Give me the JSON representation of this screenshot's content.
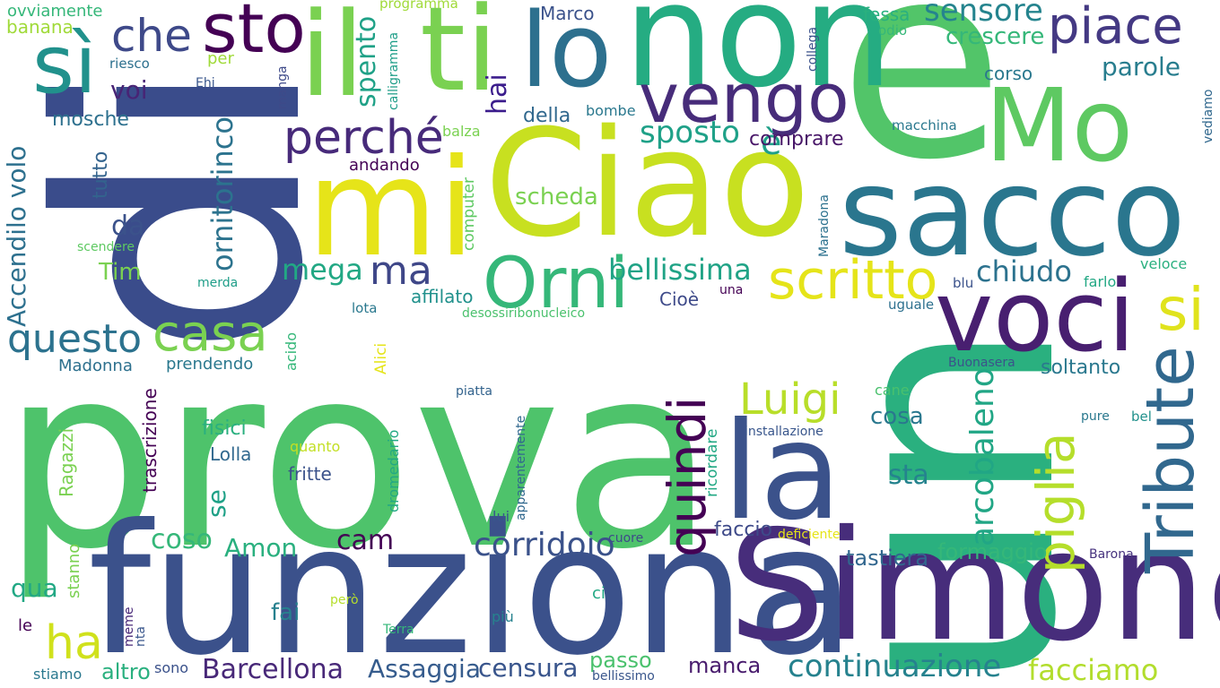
{
  "words": [
    {
      "key": "di",
      "text": "di",
      "color": "#3a4c8b"
    },
    {
      "key": "prova",
      "text": "prova",
      "color": "#4ec36b"
    },
    {
      "key": "e",
      "text": "e",
      "color": "#52c569"
    },
    {
      "key": "un",
      "text": "un",
      "color": "#2ab07f"
    },
    {
      "key": "funziona",
      "text": "funziona",
      "color": "#3b518b"
    },
    {
      "key": "Simone",
      "text": "Simone",
      "color": "#472d7b"
    },
    {
      "key": "Ciao",
      "text": "Ciao",
      "color": "#c8e020"
    },
    {
      "key": "non",
      "text": "non",
      "color": "#25ac82"
    },
    {
      "key": "sacco",
      "text": "sacco",
      "color": "#2a768e"
    },
    {
      "key": "mi",
      "text": "mi",
      "color": "#e6e419"
    },
    {
      "key": "la",
      "text": "la",
      "color": "#3b528b"
    },
    {
      "key": "voci",
      "text": "voci",
      "color": "#481f70"
    },
    {
      "key": "il",
      "text": "il",
      "color": "#7ad151"
    },
    {
      "key": "ti",
      "text": "ti",
      "color": "#7ad151"
    },
    {
      "key": "lo",
      "text": "lo",
      "color": "#2d708e"
    },
    {
      "key": "Mo",
      "text": "Mo",
      "color": "#5ec962"
    },
    {
      "key": "Tribute",
      "text": "Tribute",
      "color": "#31688e"
    },
    {
      "key": "sì",
      "text": "sì",
      "color": "#21918c"
    },
    {
      "key": "sto",
      "text": "sto",
      "color": "#440154"
    },
    {
      "key": "vengo",
      "text": "vengo",
      "color": "#472c7a"
    },
    {
      "key": "Orni",
      "text": "Orni",
      "color": "#35b779"
    },
    {
      "key": "scritto",
      "text": "scritto",
      "color": "#e5e419"
    },
    {
      "key": "piace",
      "text": "piace",
      "color": "#443983"
    },
    {
      "key": "quindi",
      "text": "quindi",
      "color": "#440154"
    },
    {
      "key": "piglia",
      "text": "piglia",
      "color": "#b5de2b"
    },
    {
      "key": "perché",
      "text": "perché",
      "color": "#472a7a"
    },
    {
      "key": "casa",
      "text": "casa",
      "color": "#7ad151"
    },
    {
      "key": "si",
      "text": "si",
      "color": "#e0e31d"
    },
    {
      "key": "questo",
      "text": "questo",
      "color": "#2c728e"
    },
    {
      "key": "ha",
      "text": "ha",
      "color": "#d0e11c"
    },
    {
      "key": "che",
      "text": "che",
      "color": "#3e4989"
    },
    {
      "key": "Luigi",
      "text": "Luigi",
      "color": "#b8de29"
    },
    {
      "key": "arcobaleno",
      "text": "arcobaleno",
      "color": "#21a685"
    },
    {
      "key": "ma",
      "text": "ma",
      "color": "#3f4788"
    },
    {
      "key": "Accendilo volo",
      "text": "Accendilo volo",
      "color": "#2d708e"
    },
    {
      "key": "ornitorinco",
      "text": "ornitorinco",
      "color": "#2c738e"
    },
    {
      "key": "bellissima",
      "text": "bellissima",
      "color": "#20a386"
    },
    {
      "key": "continuazione",
      "text": "continuazione",
      "color": "#26828e"
    },
    {
      "key": "corridoio",
      "text": "corridoio",
      "color": "#3b528b"
    },
    {
      "key": "sposto",
      "text": "sposto",
      "color": "#1fa188"
    },
    {
      "key": "è",
      "text": "è",
      "color": "#1fa088"
    },
    {
      "key": "sensore",
      "text": "sensore",
      "color": "#25848e"
    },
    {
      "key": "spento",
      "text": "spento",
      "color": "#1fa187"
    },
    {
      "key": "mega",
      "text": "mega",
      "color": "#22a884"
    },
    {
      "key": "chiudo",
      "text": "chiudo",
      "color": "#2c728e"
    },
    {
      "key": "parole",
      "text": "parole",
      "color": "#287d8e"
    },
    {
      "key": "hai",
      "text": "hai",
      "color": "#3b1c8c"
    },
    {
      "key": "voi",
      "text": "voi",
      "color": "#482475"
    },
    {
      "key": "Barcellona",
      "text": "Barcellona",
      "color": "#482878"
    },
    {
      "key": "facciamo",
      "text": "facciamo",
      "color": "#b2dd2d"
    },
    {
      "key": "Assaggia",
      "text": "Assaggia",
      "color": "#365c8d"
    },
    {
      "key": "censura",
      "text": "censura",
      "color": "#39558c"
    },
    {
      "key": "cam",
      "text": "cam",
      "color": "#440154"
    },
    {
      "key": "coso",
      "text": "coso",
      "color": "#35b779"
    },
    {
      "key": "Amon",
      "text": "Amon",
      "color": "#2ab07f"
    },
    {
      "key": "crescere",
      "text": "crescere",
      "color": "#35b779"
    },
    {
      "key": "comprare",
      "text": "comprare",
      "color": "#481668"
    },
    {
      "key": "della",
      "text": "della",
      "color": "#31688e"
    },
    {
      "key": "scheda",
      "text": "scheda",
      "color": "#7ad151"
    },
    {
      "key": "sta",
      "text": "sta",
      "color": "#25838e"
    },
    {
      "key": "cosa",
      "text": "cosa",
      "color": "#2a788e"
    },
    {
      "key": "tastiera",
      "text": "tastiera",
      "color": "#31668e"
    },
    {
      "key": "formaggio",
      "text": "formaggio",
      "color": "#35b779"
    },
    {
      "key": "soltanto",
      "text": "soltanto",
      "color": "#2a788e"
    },
    {
      "key": "mosche",
      "text": "mosche",
      "color": "#2d708e"
    },
    {
      "key": "Tim",
      "text": "Tim",
      "color": "#7ad151"
    },
    {
      "key": "da",
      "text": "da",
      "color": "#3b528b"
    },
    {
      "key": "tutto",
      "text": "tutto",
      "color": "#33638d"
    },
    {
      "key": "se",
      "text": "se",
      "color": "#1fa187"
    },
    {
      "key": "qua",
      "text": "qua",
      "color": "#22a884"
    },
    {
      "key": "fai",
      "text": "fai",
      "color": "#27808e"
    },
    {
      "key": "altro",
      "text": "altro",
      "color": "#2ab07f"
    },
    {
      "key": "passo",
      "text": "passo",
      "color": "#4ac16d"
    },
    {
      "key": "manca",
      "text": "manca",
      "color": "#481b6d"
    },
    {
      "key": "fisici",
      "text": "fisici",
      "color": "#2ab07f"
    },
    {
      "key": "Lolla",
      "text": "Lolla",
      "color": "#31688e"
    },
    {
      "key": "fritte",
      "text": "fritte",
      "color": "#3b528b"
    },
    {
      "key": "faccio",
      "text": "faccio",
      "color": "#3e4a89"
    },
    {
      "key": "Madonna",
      "text": "Madonna",
      "color": "#2d708e"
    },
    {
      "key": "prendendo",
      "text": "prendendo",
      "color": "#2a788e"
    },
    {
      "key": "affilato",
      "text": "affilato",
      "color": "#21918c"
    },
    {
      "key": "Cioè",
      "text": "Cioè",
      "color": "#3e4a89"
    },
    {
      "key": "andando",
      "text": "andando",
      "color": "#440154"
    },
    {
      "key": "Marco",
      "text": "Marco",
      "color": "#3b528b"
    },
    {
      "key": "fessa",
      "text": "fessa",
      "color": "#2ab07f"
    },
    {
      "key": "corso",
      "text": "corso",
      "color": "#2a788e"
    },
    {
      "key": "ovviamente",
      "text": "ovviamente",
      "color": "#35b779"
    },
    {
      "key": "banana",
      "text": "banana",
      "color": "#a0da39"
    },
    {
      "key": "riesco",
      "text": "riesco",
      "color": "#2d708e"
    },
    {
      "key": "per",
      "text": "per",
      "color": "#a0da39"
    },
    {
      "key": "Ehi",
      "text": "Ehi",
      "color": "#39568c"
    },
    {
      "key": "bombe",
      "text": "bombe",
      "color": "#2a788e"
    },
    {
      "key": "balza",
      "text": "balza",
      "color": "#7ad151"
    },
    {
      "key": "odio",
      "text": "odio",
      "color": "#35b779"
    },
    {
      "key": "programma",
      "text": "programma",
      "color": "#a0da39"
    },
    {
      "key": "macchina",
      "text": "macchina",
      "color": "#2a788e"
    },
    {
      "key": "vediamo",
      "text": "vediamo",
      "color": "#31688e"
    },
    {
      "key": "collega",
      "text": "collega",
      "color": "#3b528b"
    },
    {
      "key": "scendere",
      "text": "scendere",
      "color": "#5ec962"
    },
    {
      "key": "merda",
      "text": "merda",
      "color": "#1f9e89"
    },
    {
      "key": "lota",
      "text": "lota",
      "color": "#2a788e"
    },
    {
      "key": "desossiribonucleico",
      "text": "desossiribonucleico",
      "color": "#4ac16d"
    },
    {
      "key": "una",
      "text": "una",
      "color": "#440154"
    },
    {
      "key": "blu",
      "text": "blu",
      "color": "#3b528b"
    },
    {
      "key": "farlo",
      "text": "farlo",
      "color": "#22a884"
    },
    {
      "key": "veloce",
      "text": "veloce",
      "color": "#2ab07f"
    },
    {
      "key": "uguale",
      "text": "uguale",
      "color": "#2d708e"
    },
    {
      "key": "Buonasera",
      "text": "Buonasera",
      "color": "#3b528b"
    },
    {
      "key": "cane",
      "text": "cane",
      "color": "#4ac16d"
    },
    {
      "key": "pure",
      "text": "pure",
      "color": "#2a788e"
    },
    {
      "key": "bel",
      "text": "bel",
      "color": "#21918c"
    },
    {
      "key": "piatta",
      "text": "piatta",
      "color": "#33638d"
    },
    {
      "key": "installazione",
      "text": "installazione",
      "color": "#39568c"
    },
    {
      "key": "quanto",
      "text": "quanto",
      "color": "#c2df23"
    },
    {
      "key": "cuore",
      "text": "cuore",
      "color": "#3e4a89"
    },
    {
      "key": "deficiente",
      "text": "deficiente",
      "color": "#e5e419"
    },
    {
      "key": "Barona",
      "text": "Barona",
      "color": "#46327e"
    },
    {
      "key": "lui",
      "text": "lui",
      "color": "#39568c"
    },
    {
      "key": "ci",
      "text": "ci",
      "color": "#22a884"
    },
    {
      "key": "più",
      "text": "più",
      "color": "#26828e"
    },
    {
      "key": "però",
      "text": "però",
      "color": "#b5de2b"
    },
    {
      "key": "Terra",
      "text": "Terra",
      "color": "#35b779"
    },
    {
      "key": "le",
      "text": "le",
      "color": "#440154"
    },
    {
      "key": "sono",
      "text": "sono",
      "color": "#3b528b"
    },
    {
      "key": "stiamo",
      "text": "stiamo",
      "color": "#2a788e"
    },
    {
      "key": "bellissimo",
      "text": "bellissimo",
      "color": "#39568c"
    },
    {
      "key": "manga",
      "text": "manga",
      "color": "#3e4a89"
    },
    {
      "key": "calligramma",
      "text": "calligramma",
      "color": "#1f9e89"
    },
    {
      "key": "computer",
      "text": "computer",
      "color": "#5ec962"
    },
    {
      "key": "Maradona",
      "text": "Maradona",
      "color": "#2c718e"
    },
    {
      "key": "Alici",
      "text": "Alici",
      "color": "#e5e419"
    },
    {
      "key": "acido",
      "text": "acido",
      "color": "#35b779"
    },
    {
      "key": "trascrizione",
      "text": "trascrizione",
      "color": "#440154"
    },
    {
      "key": "Ragazzi",
      "text": "Ragazzi",
      "color": "#7ad151"
    },
    {
      "key": "stanno",
      "text": "stanno",
      "color": "#7ad151"
    },
    {
      "key": "meme",
      "text": "meme",
      "color": "#482878"
    },
    {
      "key": "nta",
      "text": "nta",
      "color": "#39568c"
    },
    {
      "key": "dromedario",
      "text": "dromedario",
      "color": "#22a884"
    },
    {
      "key": "apparentemente",
      "text": "apparentemente",
      "color": "#31688e"
    },
    {
      "key": "ricordare",
      "text": "ricordare",
      "color": "#22a884"
    }
  ]
}
